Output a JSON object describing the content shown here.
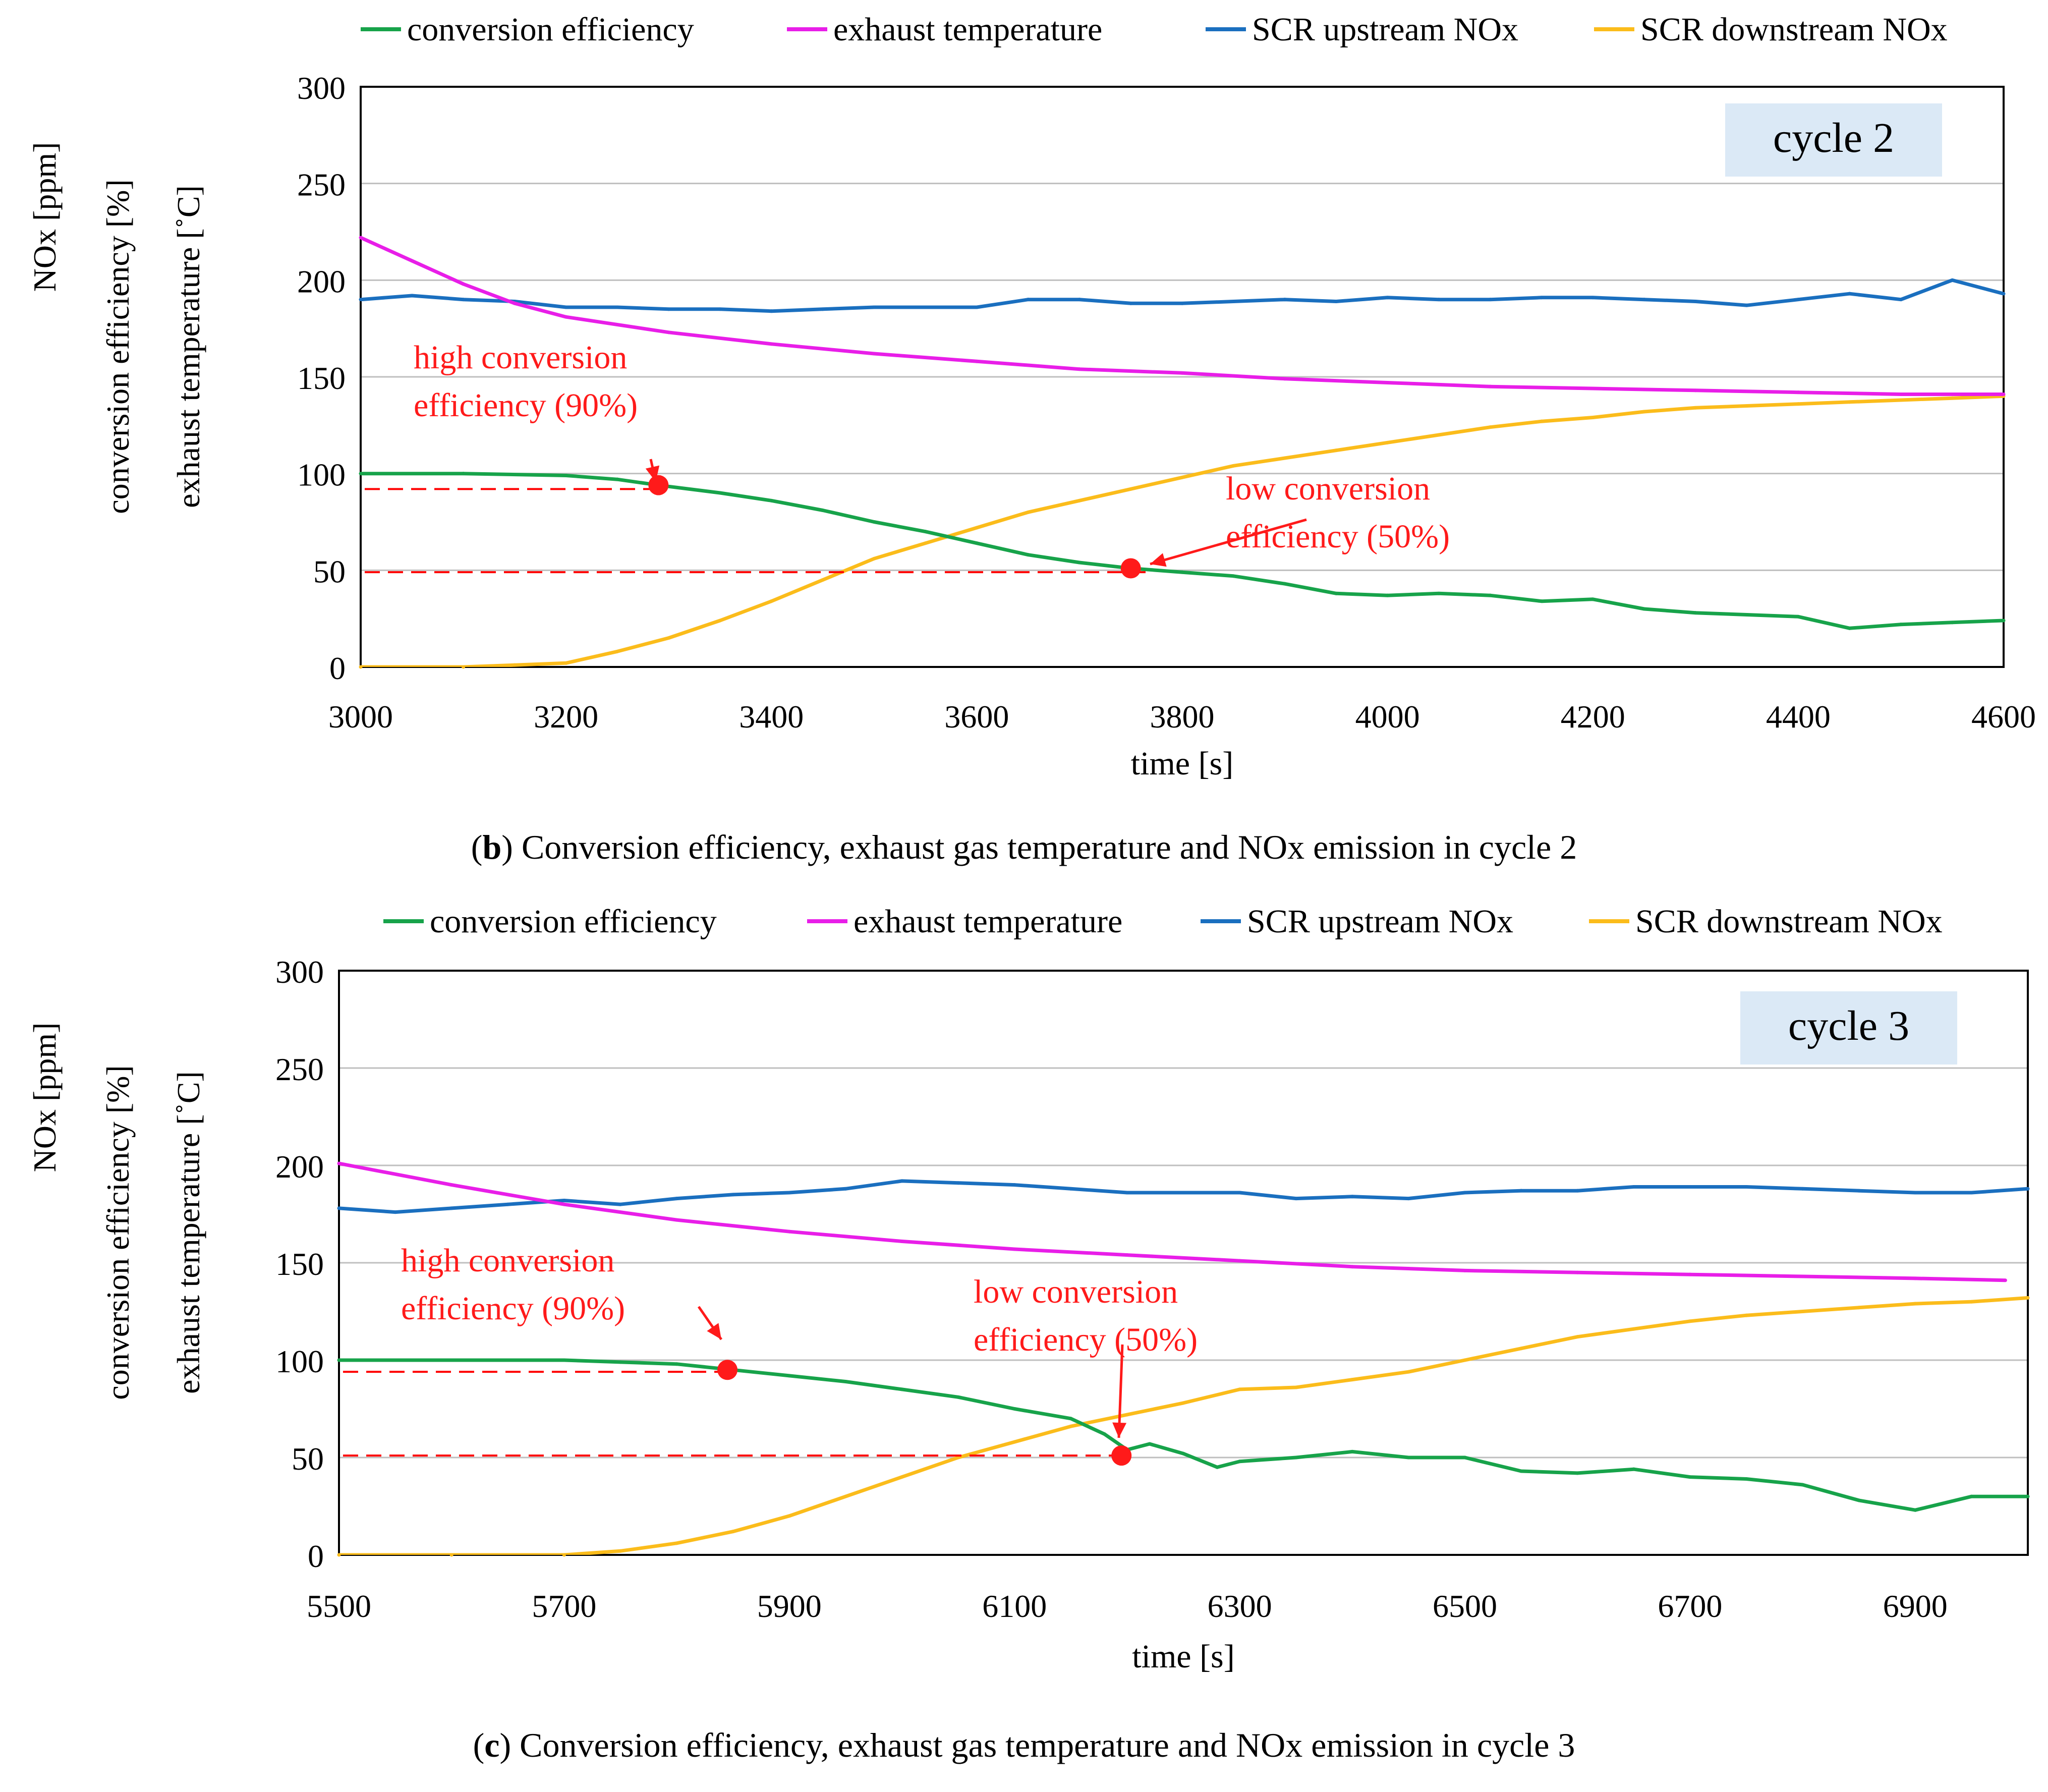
{
  "chart_data": [
    {
      "type": "line",
      "panel_letter": "b",
      "caption": "Conversion efficiency, exhaust gas temperature and NOx emission in cycle 2",
      "xlabel": "time [s]",
      "ylabels": [
        "NOx [ppm]",
        "conversion efficiency [%]",
        "exhaust temperature [˚C]"
      ],
      "xlim": [
        3000,
        4600
      ],
      "ylim": [
        0,
        300
      ],
      "xticks": [
        3000,
        3200,
        3400,
        3600,
        3800,
        4000,
        4200,
        4400,
        4600
      ],
      "yticks": [
        0,
        50,
        100,
        150,
        200,
        250,
        300
      ],
      "grid": "horizontal",
      "legend": [
        "conversion efficiency",
        "exhaust temperature",
        "SCR upstream NOx",
        "SCR downstream NOx"
      ],
      "cycle_label": "cycle 2",
      "series": [
        {
          "name": "conversion efficiency",
          "color": "#17a34a",
          "x": [
            3000,
            3100,
            3200,
            3250,
            3290,
            3350,
            3400,
            3450,
            3500,
            3550,
            3600,
            3650,
            3700,
            3750,
            3800,
            3850,
            3900,
            3950,
            4000,
            4050,
            4100,
            4150,
            4200,
            4250,
            4300,
            4350,
            4400,
            4450,
            4500,
            4550,
            4600
          ],
          "y": [
            100,
            100,
            99,
            97,
            94,
            90,
            86,
            81,
            75,
            70,
            64,
            58,
            54,
            51,
            49,
            47,
            43,
            38,
            37,
            38,
            37,
            34,
            35,
            30,
            28,
            27,
            26,
            20,
            22,
            23,
            24
          ]
        },
        {
          "name": "exhaust temperature",
          "color": "#e81ee8",
          "x": [
            3000,
            3050,
            3100,
            3150,
            3200,
            3300,
            3400,
            3500,
            3600,
            3700,
            3800,
            3900,
            4000,
            4100,
            4200,
            4300,
            4400,
            4500,
            4600
          ],
          "y": [
            222,
            210,
            198,
            188,
            181,
            173,
            167,
            162,
            158,
            154,
            152,
            149,
            147,
            145,
            144,
            143,
            142,
            141,
            141
          ]
        },
        {
          "name": "SCR upstream NOx",
          "color": "#1a6fbf",
          "x": [
            3000,
            3050,
            3100,
            3150,
            3200,
            3250,
            3300,
            3350,
            3400,
            3450,
            3500,
            3550,
            3600,
            3650,
            3700,
            3750,
            3800,
            3850,
            3900,
            3950,
            4000,
            4050,
            4100,
            4150,
            4200,
            4250,
            4300,
            4350,
            4400,
            4450,
            4500,
            4550,
            4600
          ],
          "y": [
            190,
            192,
            190,
            189,
            186,
            186,
            185,
            185,
            184,
            185,
            186,
            186,
            186,
            190,
            190,
            188,
            188,
            189,
            190,
            189,
            191,
            190,
            190,
            191,
            191,
            190,
            189,
            187,
            190,
            193,
            190,
            200,
            193
          ]
        },
        {
          "name": "SCR downstream NOx",
          "color": "#fbbc1b",
          "x": [
            3000,
            3100,
            3150,
            3200,
            3250,
            3300,
            3350,
            3400,
            3450,
            3500,
            3550,
            3600,
            3650,
            3700,
            3750,
            3800,
            3850,
            3900,
            3950,
            4000,
            4050,
            4100,
            4150,
            4200,
            4250,
            4300,
            4350,
            4400,
            4450,
            4500,
            4550,
            4600
          ],
          "y": [
            0,
            0,
            1,
            2,
            8,
            15,
            24,
            34,
            45,
            56,
            64,
            72,
            80,
            86,
            92,
            98,
            104,
            108,
            112,
            116,
            120,
            124,
            127,
            129,
            132,
            134,
            135,
            136,
            137,
            138,
            139,
            140
          ]
        }
      ],
      "annotations": [
        {
          "text": [
            "high conversion",
            "efficiency (90%)"
          ],
          "x": 3290,
          "y": 94
        },
        {
          "text": [
            "low conversion",
            "efficiency (50%)"
          ],
          "x": 3750,
          "y": 51
        }
      ],
      "ref_lines": [
        92,
        49
      ]
    },
    {
      "type": "line",
      "panel_letter": "c",
      "caption": "Conversion efficiency, exhaust gas temperature and NOx emission in cycle 3",
      "xlabel": "time [s]",
      "ylabels": [
        "NOx [ppm]",
        "conversion efficiency [%]",
        "exhaust temperature [˚C]"
      ],
      "xlim": [
        5500,
        7000
      ],
      "ylim": [
        0,
        300
      ],
      "xticks": [
        5500,
        5700,
        5900,
        6100,
        6300,
        6500,
        6700,
        6900
      ],
      "yticks": [
        0,
        50,
        100,
        150,
        200,
        250,
        300
      ],
      "grid": "horizontal",
      "legend": [
        "conversion efficiency",
        "exhaust temperature",
        "SCR upstream NOx",
        "SCR downstream NOx"
      ],
      "cycle_label": "cycle 3",
      "series": [
        {
          "name": "conversion efficiency",
          "color": "#17a34a",
          "x": [
            5500,
            5600,
            5700,
            5750,
            5800,
            5850,
            5900,
            5950,
            6000,
            6050,
            6100,
            6150,
            6180,
            6200,
            6220,
            6250,
            6280,
            6300,
            6350,
            6400,
            6450,
            6500,
            6550,
            6600,
            6650,
            6700,
            6750,
            6800,
            6850,
            6900,
            6950,
            7000
          ],
          "y": [
            100,
            100,
            100,
            99,
            98,
            95,
            92,
            89,
            85,
            81,
            75,
            70,
            62,
            54,
            57,
            52,
            45,
            48,
            50,
            53,
            50,
            50,
            43,
            42,
            44,
            40,
            39,
            36,
            28,
            23,
            30,
            30
          ]
        },
        {
          "name": "exhaust temperature",
          "color": "#e81ee8",
          "x": [
            5500,
            5600,
            5700,
            5800,
            5900,
            6000,
            6100,
            6200,
            6300,
            6400,
            6500,
            6600,
            6700,
            6800,
            6900,
            6980
          ],
          "y": [
            201,
            190,
            180,
            172,
            166,
            161,
            157,
            154,
            151,
            148,
            146,
            145,
            144,
            143,
            142,
            141
          ]
        },
        {
          "name": "SCR upstream NOx",
          "color": "#1a6fbf",
          "x": [
            5500,
            5550,
            5600,
            5650,
            5700,
            5750,
            5800,
            5850,
            5900,
            5950,
            6000,
            6050,
            6100,
            6150,
            6200,
            6250,
            6300,
            6350,
            6400,
            6450,
            6500,
            6550,
            6600,
            6650,
            6700,
            6750,
            6800,
            6850,
            6900,
            6950,
            7000
          ],
          "y": [
            178,
            176,
            178,
            180,
            182,
            180,
            183,
            185,
            186,
            188,
            192,
            191,
            190,
            188,
            186,
            186,
            186,
            183,
            184,
            183,
            186,
            187,
            187,
            189,
            189,
            189,
            188,
            187,
            186,
            186,
            188
          ]
        },
        {
          "name": "SCR downstream NOx",
          "color": "#fbbc1b",
          "x": [
            5500,
            5600,
            5700,
            5750,
            5800,
            5850,
            5900,
            5950,
            6000,
            6050,
            6100,
            6150,
            6200,
            6250,
            6300,
            6350,
            6400,
            6450,
            6500,
            6550,
            6600,
            6650,
            6700,
            6750,
            6800,
            6850,
            6900,
            6950,
            7000
          ],
          "y": [
            0,
            0,
            0,
            2,
            6,
            12,
            20,
            30,
            40,
            50,
            58,
            66,
            72,
            78,
            85,
            86,
            90,
            94,
            100,
            106,
            112,
            116,
            120,
            123,
            125,
            127,
            129,
            130,
            132
          ]
        }
      ],
      "annotations": [
        {
          "text": [
            "high conversion",
            "efficiency (90%)"
          ],
          "x": 5845,
          "y": 95
        },
        {
          "text": [
            "low conversion",
            "efficiency (50%)"
          ],
          "x": 6195,
          "y": 51
        }
      ],
      "ref_lines": [
        94,
        51
      ]
    }
  ]
}
